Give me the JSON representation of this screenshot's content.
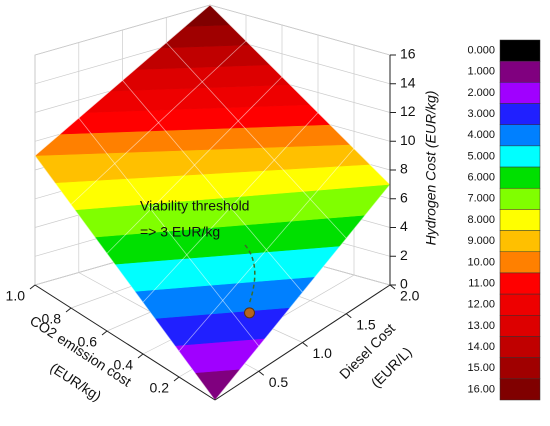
{
  "chart_data": {
    "type": "surface3d",
    "xlabel": [
      "CO2 emission cost",
      "(EUR/kg)"
    ],
    "ylabel": [
      "Diesel Cost",
      "(EUR/L)"
    ],
    "zlabel": "Hydrogen Cost (EUR/kg)",
    "xlim": [
      0,
      1
    ],
    "ylim": [
      0,
      2
    ],
    "zlim": [
      0,
      16
    ],
    "xticks": [
      0.2,
      0.4,
      0.6,
      0.8,
      {
        "value": 1,
        "label": "1.0"
      }
    ],
    "yticks": [
      0.5,
      {
        "value": 1,
        "label": "1.0"
      },
      1.5,
      {
        "value": 2,
        "label": "2.0"
      }
    ],
    "zticks": [
      0,
      2,
      4,
      6,
      8,
      10,
      12,
      14,
      16
    ],
    "surface": {
      "x": [
        0,
        1
      ],
      "y": [
        0,
        2
      ],
      "z": [
        [
          0,
          7
        ],
        [
          9,
          16
        ]
      ]
    },
    "colorbar": {
      "levels": [
        {
          "value": 0,
          "label": "0.000"
        },
        {
          "value": 1,
          "label": "1.000"
        },
        {
          "value": 2,
          "label": "2.000"
        },
        {
          "value": 3,
          "label": "3.000"
        },
        {
          "value": 4,
          "label": "4.000"
        },
        {
          "value": 5,
          "label": "5.000"
        },
        {
          "value": 6,
          "label": "6.000"
        },
        {
          "value": 7,
          "label": "7.000"
        },
        {
          "value": 8,
          "label": "8.000"
        },
        {
          "value": 9,
          "label": "9.000"
        },
        {
          "value": 10,
          "label": "10.00"
        },
        {
          "value": 11,
          "label": "11.00"
        },
        {
          "value": 12,
          "label": "12.00"
        },
        {
          "value": 13,
          "label": "13.00"
        },
        {
          "value": 14,
          "label": "14.00"
        },
        {
          "value": 15,
          "label": "15.00"
        },
        {
          "value": 16,
          "label": "16.00"
        }
      ],
      "colors": [
        "#000000",
        "#80007f",
        "#a000ff",
        "#2020ff",
        "#0080ff",
        "#00ffff",
        "#00e000",
        "#80ff00",
        "#ffff00",
        "#ffc000",
        "#ff8000",
        "#ff0000",
        "#ee0000",
        "#dd0000",
        "#c00000",
        "#a00000",
        "#800000"
      ]
    },
    "annotation": {
      "lines": [
        "Viability threshold",
        "=> 3 EUR/kg"
      ],
      "color": "#b5651d",
      "point": {
        "x": 0.1,
        "y": 0.6,
        "z": 3
      }
    },
    "grid": true
  }
}
